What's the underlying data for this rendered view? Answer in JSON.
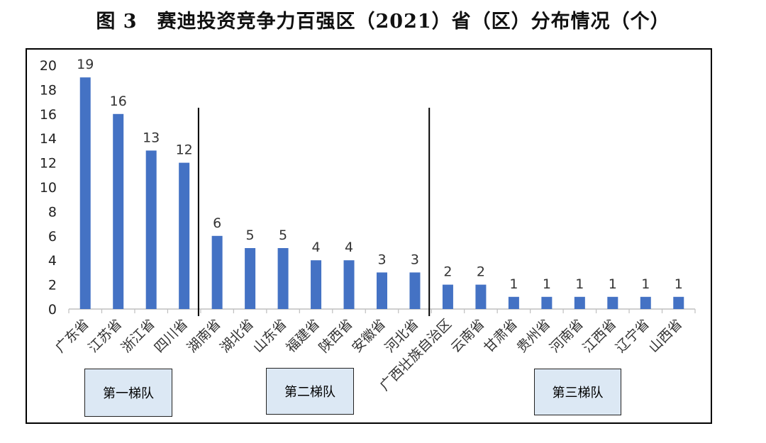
{
  "title": "图 3　赛迪投资竞争力百强区（2021）省（区）分布情况（个）",
  "chart_data": {
    "type": "bar",
    "categories": [
      "广东省",
      "江苏省",
      "浙江省",
      "四川省",
      "湖南省",
      "湖北省",
      "山东省",
      "福建省",
      "陕西省",
      "安徽省",
      "河北省",
      "广西壮族自治区",
      "云南省",
      "甘肃省",
      "贵州省",
      "河南省",
      "江西省",
      "辽宁省",
      "山西省"
    ],
    "values": [
      19,
      16,
      13,
      12,
      6,
      5,
      5,
      4,
      4,
      3,
      3,
      2,
      2,
      1,
      1,
      1,
      1,
      1,
      1
    ],
    "ylim": [
      0,
      20
    ],
    "yticks": [
      "0",
      "2",
      "4",
      "6",
      "8",
      "10",
      "12",
      "14",
      "16",
      "18",
      "20"
    ],
    "bar_color": "#4472c4",
    "data_labels": true,
    "grid": false
  },
  "tiers": [
    {
      "label": "第一梯队",
      "from": 0,
      "to": 3
    },
    {
      "label": "第二梯队",
      "from": 4,
      "to": 10
    },
    {
      "label": "第三梯队",
      "from": 11,
      "to": 18
    }
  ]
}
